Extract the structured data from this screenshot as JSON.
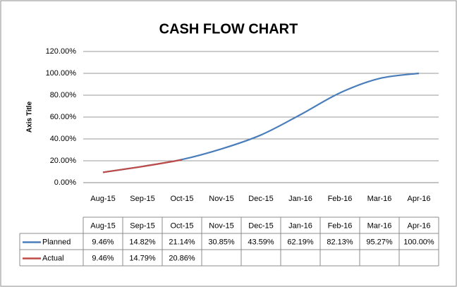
{
  "chart_data": {
    "type": "line",
    "title": "CASH FLOW CHART",
    "y_axis_label": "Axis Title",
    "categories": [
      "Aug-15",
      "Sep-15",
      "Oct-15",
      "Nov-15",
      "Dec-15",
      "Jan-16",
      "Feb-16",
      "Mar-16",
      "Apr-16"
    ],
    "series": [
      {
        "name": "Planned",
        "color": "#4a7ebb",
        "values": [
          9.46,
          14.82,
          21.14,
          30.85,
          43.59,
          62.19,
          82.13,
          95.27,
          100.0
        ],
        "value_labels": [
          "9.46%",
          "14.82%",
          "21.14%",
          "30.85%",
          "43.59%",
          "62.19%",
          "82.13%",
          "95.27%",
          "100.00%"
        ]
      },
      {
        "name": "Actual",
        "color": "#be4b48",
        "values": [
          9.46,
          14.79,
          20.86,
          null,
          null,
          null,
          null,
          null,
          null
        ],
        "value_labels": [
          "9.46%",
          "14.79%",
          "20.86%",
          null,
          null,
          null,
          null,
          null,
          null
        ]
      }
    ],
    "ylim": [
      0,
      120
    ],
    "yticks": [
      {
        "value": 0,
        "label": "0.00%"
      },
      {
        "value": 20,
        "label": "20.00%"
      },
      {
        "value": 40,
        "label": "40.00%"
      },
      {
        "value": 60,
        "label": "60.00%"
      },
      {
        "value": 80,
        "label": "80.00%"
      },
      {
        "value": 100,
        "label": "100.00%"
      },
      {
        "value": 120,
        "label": "120.00%"
      }
    ],
    "grid": true,
    "data_table": true
  }
}
